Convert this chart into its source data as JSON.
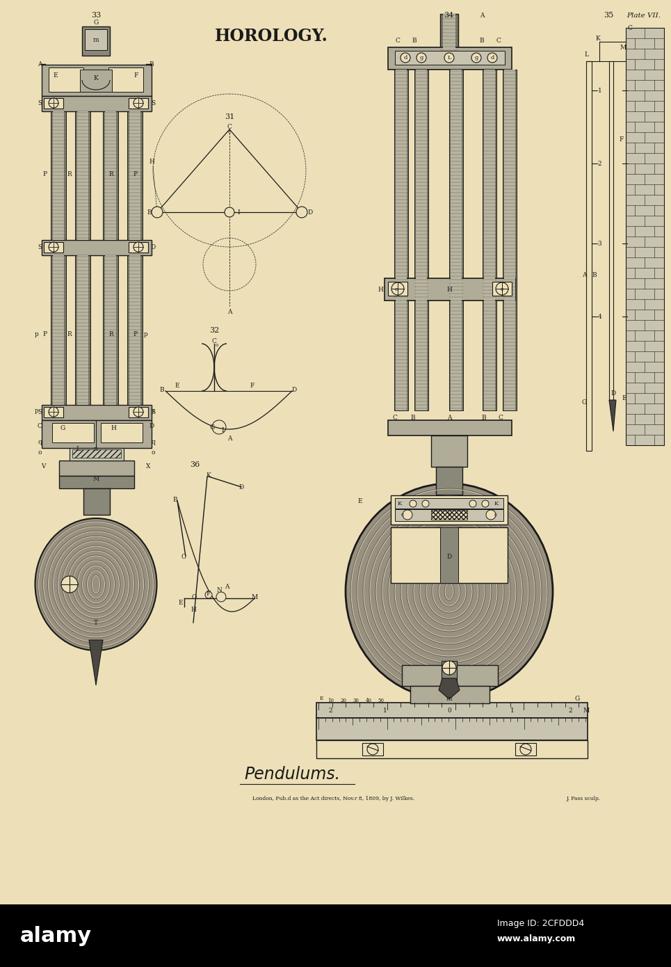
{
  "paper_color": "#ede0b8",
  "ink_color": "#1a1a1a",
  "light_gray": "#c8c4b0",
  "mid_gray": "#8a8878",
  "dark_gray": "#4a4840",
  "rod_fill": "#7a7868",
  "rod_light": "#b8b4a0",
  "crossbar_fill": "#b0ac98",
  "ball_fill": "#989080",
  "title": "HOROLOGY.",
  "subtitle": "Pendulums.",
  "publisher": "London, Pub.d as the Act directs, Nov.r 8, 1809, by J. Wilkes.",
  "engraver": "J. Pass sculp.",
  "plate": "Plate VII.",
  "alamy_text": "alamy",
  "alamy_id": "Image ID: 2CFDDD4",
  "alamy_web": "www.alamy.com",
  "alamy_bar_color": "#000000"
}
